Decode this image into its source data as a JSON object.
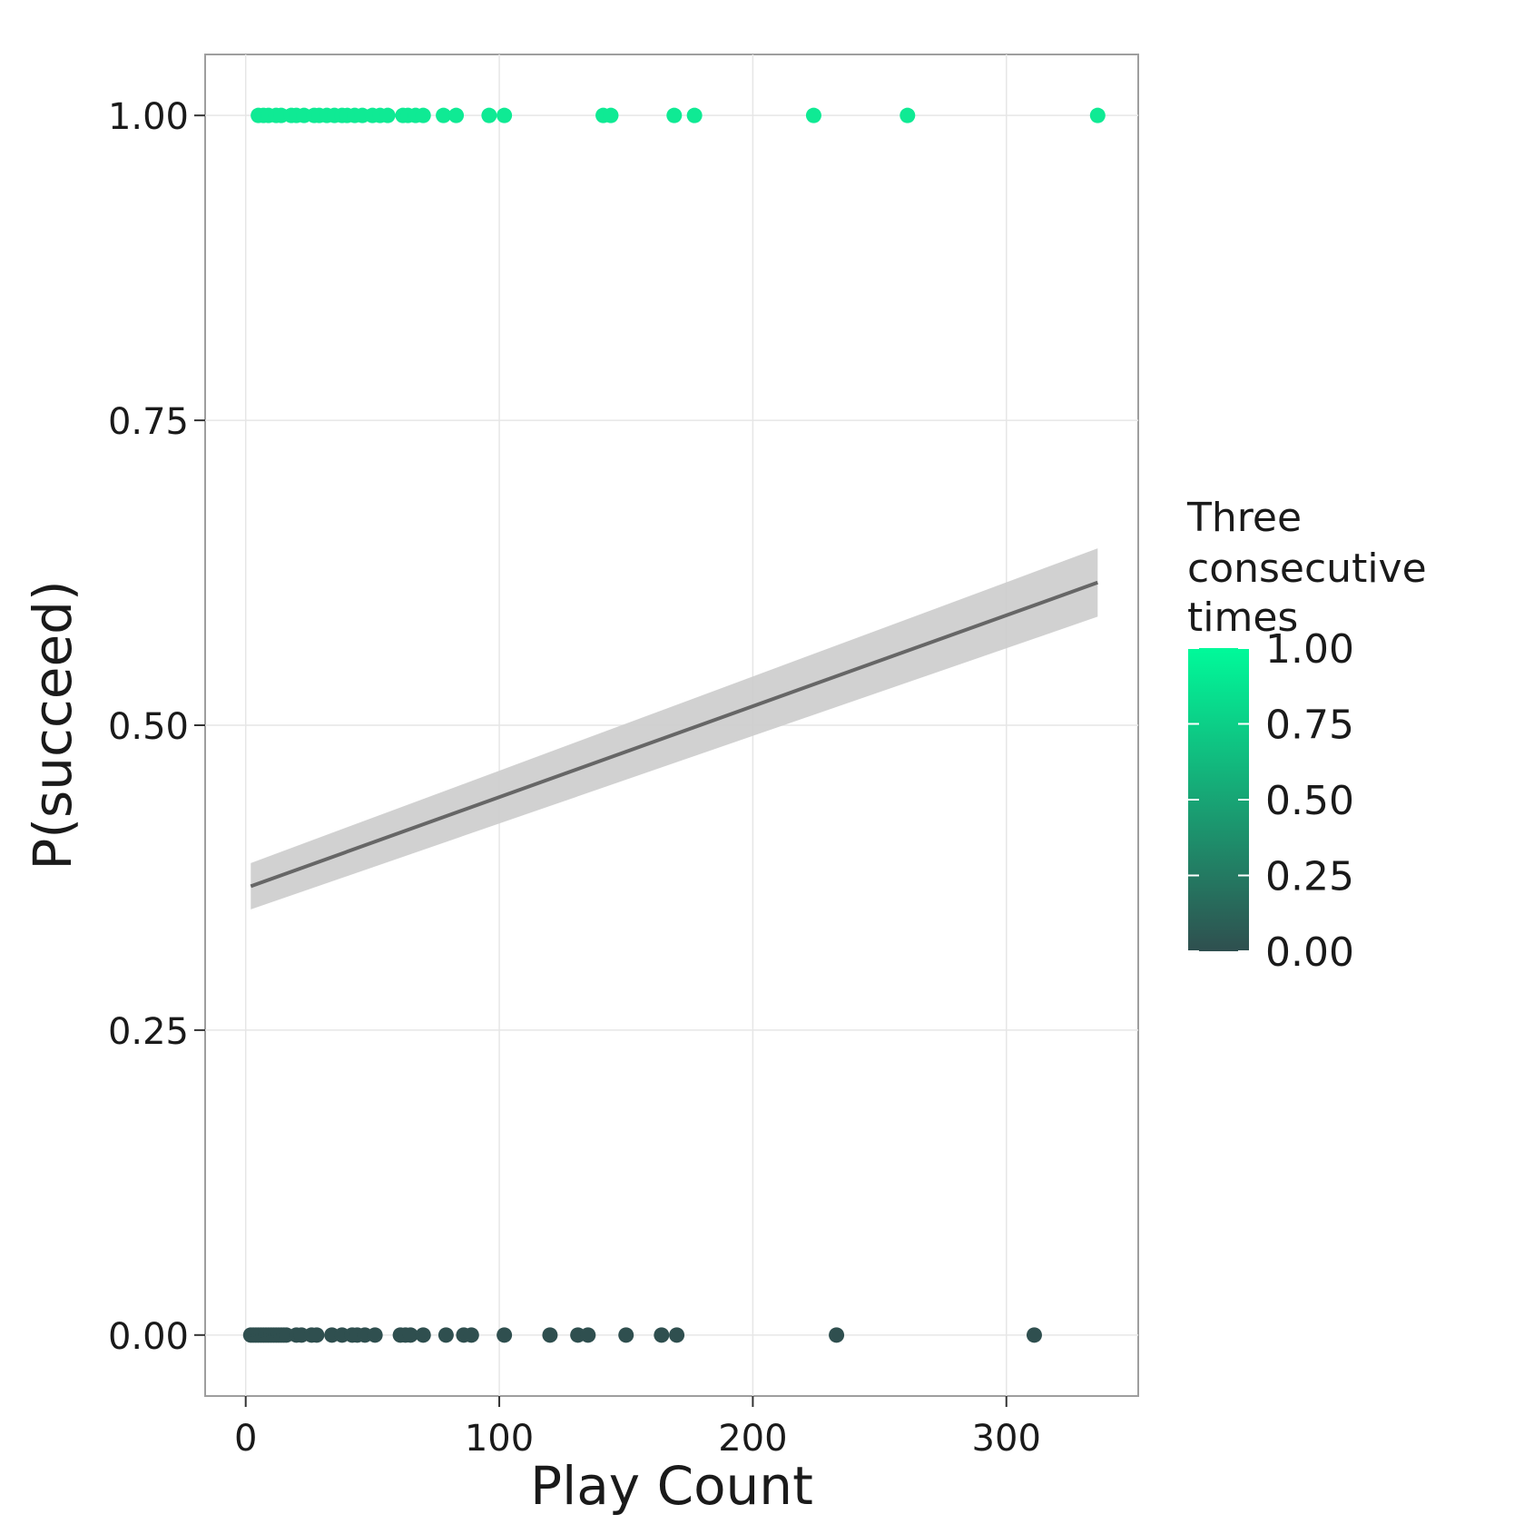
{
  "chart_data": {
    "type": "scatter",
    "title": "",
    "xlabel": "Play Count",
    "ylabel": "P(succeed)",
    "xlim": [
      -16,
      352
    ],
    "ylim": [
      -0.05,
      1.05
    ],
    "x_ticks": [
      0,
      100,
      200,
      300
    ],
    "x_tick_labels": [
      "0",
      "100",
      "200",
      "300"
    ],
    "y_ticks": [
      0,
      0.25,
      0.5,
      0.75,
      1.0
    ],
    "y_tick_labels": [
      "0.00",
      "0.25",
      "0.50",
      "0.75",
      "1.00"
    ],
    "grid": true,
    "legend": {
      "title": "Three consecutive times",
      "title_lines": [
        "Three",
        "consecutive",
        "times"
      ],
      "placement": "right",
      "type": "colorbar",
      "low_color": "#2F4F4F",
      "high_color": "#00FA9A",
      "breaks": [
        0,
        0.25,
        0.5,
        0.75,
        1.0
      ],
      "labels": [
        "0.00",
        "0.25",
        "0.50",
        "0.75",
        "1.00"
      ]
    },
    "colors": {
      "success": "#0FEA94",
      "failure": "#2F4F4F",
      "fit_line": "#666666",
      "ribbon": "#cccccc"
    },
    "points": {
      "success_x": [
        5,
        7,
        9,
        12,
        14,
        18,
        20,
        23,
        27,
        29,
        32,
        35,
        38,
        40,
        43,
        46,
        50,
        53,
        56,
        62,
        64,
        67,
        70,
        78,
        83,
        96,
        102,
        141,
        144,
        169,
        177,
        224,
        261,
        336
      ],
      "failure_x": [
        2,
        3,
        4,
        5,
        6,
        7,
        8,
        9,
        10,
        11,
        12,
        13,
        14,
        15,
        16,
        20,
        22,
        26,
        28,
        34,
        38,
        42,
        44,
        47,
        51,
        61,
        63,
        65,
        70,
        79,
        86,
        89,
        102,
        120,
        131,
        135,
        150,
        164,
        170,
        233,
        311
      ]
    },
    "fit": {
      "x": [
        2,
        336
      ],
      "y": [
        0.368,
        0.617
      ],
      "ci_lower": [
        0.349,
        0.589
      ],
      "ci_upper": [
        0.387,
        0.645
      ]
    }
  }
}
